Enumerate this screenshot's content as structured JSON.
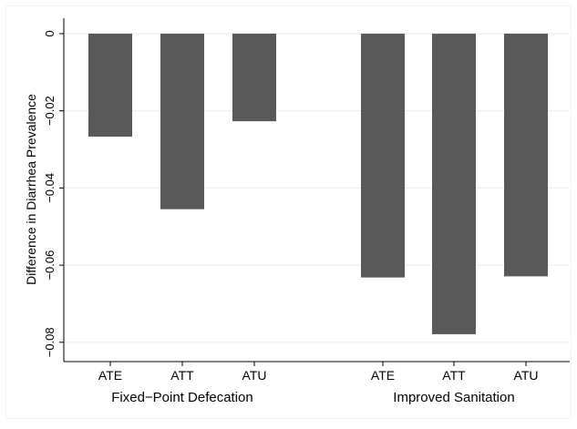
{
  "chart_data": {
    "type": "bar",
    "ylabel": "Difference in Diarrhea Prevalence",
    "ylim": [
      -0.085,
      0.004
    ],
    "yticks": [
      {
        "value": 0,
        "label": "0"
      },
      {
        "value": -0.02,
        "label": "−0.02"
      },
      {
        "value": -0.04,
        "label": "−0.04"
      },
      {
        "value": -0.06,
        "label": "−0.06"
      },
      {
        "value": -0.08,
        "label": "−0.08"
      }
    ],
    "grid": true,
    "groups": [
      {
        "label": "Fixed−Point Defecation",
        "categories": [
          "ATE",
          "ATT",
          "ATU"
        ],
        "values": [
          -0.0267,
          -0.0455,
          -0.0227
        ]
      },
      {
        "label": "Improved Sanitation",
        "categories": [
          "ATE",
          "ATT",
          "ATU"
        ],
        "values": [
          -0.0632,
          -0.0779,
          -0.0629
        ]
      }
    ],
    "colors": {
      "bar": "#595959",
      "grid": "#e6ebee",
      "background": "#ffffff",
      "plot_border": "#f2f4f6",
      "axis": "#000000"
    }
  }
}
